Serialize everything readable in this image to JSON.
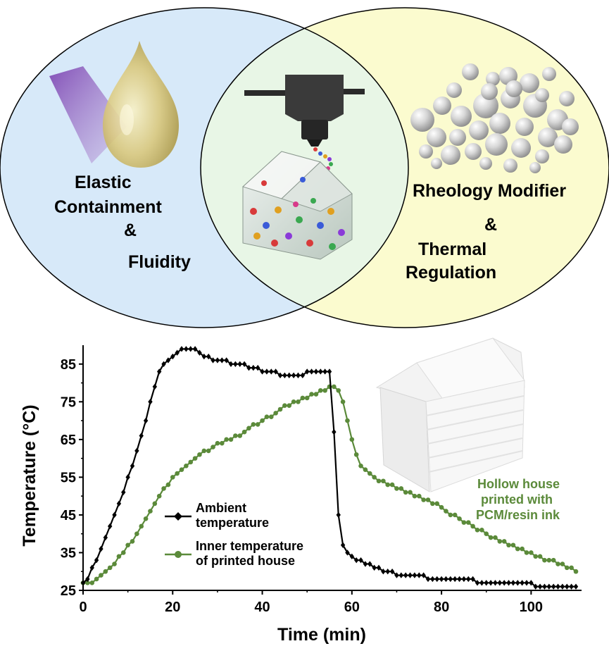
{
  "venn": {
    "left_label": [
      "Elastic",
      "Containment",
      "&",
      "Fluidity"
    ],
    "right_label": [
      "Rheology Modifier",
      "&",
      "Thermal",
      "Regulation"
    ],
    "colors": {
      "left_fill": "#d7e9f9",
      "right_fill": "#fbfbcf",
      "overlap_fill": "#e8f6e6",
      "outline": "#000000"
    }
  },
  "house_note": [
    "Hollow house",
    "printed with",
    "PCM/resin ink"
  ],
  "chart_data": {
    "type": "line",
    "xlabel": "Time (min)",
    "ylabel": "Temperature (°C)",
    "xlim": [
      0,
      110
    ],
    "ylim": [
      25,
      90
    ],
    "xticks": [
      0,
      20,
      40,
      60,
      80,
      100
    ],
    "yticks": [
      25,
      35,
      45,
      55,
      65,
      75,
      85
    ],
    "legend_position": "lower-left",
    "series": [
      {
        "name": "Ambient temperature",
        "legend_lines": [
          "Ambient",
          "temperature"
        ],
        "color": "#000000",
        "marker": "diamond",
        "x": [
          0,
          1,
          2,
          3,
          4,
          5,
          6,
          7,
          8,
          9,
          10,
          11,
          12,
          13,
          14,
          15,
          16,
          17,
          18,
          19,
          20,
          21,
          22,
          23,
          24,
          25,
          26,
          27,
          28,
          29,
          30,
          31,
          32,
          33,
          34,
          35,
          36,
          37,
          38,
          39,
          40,
          41,
          42,
          43,
          44,
          45,
          46,
          47,
          48,
          49,
          50,
          51,
          52,
          53,
          54,
          55,
          56,
          57,
          58,
          59,
          60,
          61,
          62,
          63,
          64,
          65,
          66,
          67,
          68,
          69,
          70,
          71,
          72,
          73,
          74,
          75,
          76,
          77,
          78,
          79,
          80,
          81,
          82,
          83,
          84,
          85,
          86,
          87,
          88,
          89,
          90,
          91,
          92,
          93,
          94,
          95,
          96,
          97,
          98,
          99,
          100,
          101,
          102,
          103,
          104,
          105,
          106,
          107,
          108,
          109,
          110
        ],
        "y": [
          27,
          28,
          31,
          33,
          36,
          39,
          42,
          45,
          48,
          51,
          55,
          58,
          62,
          66,
          70,
          75,
          79,
          83,
          85,
          86,
          87,
          88,
          89,
          89,
          89,
          89,
          88,
          87,
          87,
          86,
          86,
          86,
          86,
          85,
          85,
          85,
          85,
          84,
          84,
          84,
          83,
          83,
          83,
          83,
          82,
          82,
          82,
          82,
          82,
          82,
          83,
          83,
          83,
          83,
          83,
          83,
          67,
          45,
          37,
          35,
          34,
          33,
          33,
          32,
          32,
          31,
          31,
          30,
          30,
          30,
          29,
          29,
          29,
          29,
          29,
          29,
          29,
          28,
          28,
          28,
          28,
          28,
          28,
          28,
          28,
          28,
          28,
          28,
          27,
          27,
          27,
          27,
          27,
          27,
          27,
          27,
          27,
          27,
          27,
          27,
          27,
          26,
          26,
          26,
          26,
          26,
          26,
          26,
          26,
          26,
          26
        ]
      },
      {
        "name": "Inner temperature of printed house",
        "legend_lines": [
          "Inner temperature",
          "of printed house"
        ],
        "color": "#5b8a3a",
        "marker": "circle",
        "x": [
          0,
          1,
          2,
          3,
          4,
          5,
          6,
          7,
          8,
          9,
          10,
          11,
          12,
          13,
          14,
          15,
          16,
          17,
          18,
          19,
          20,
          21,
          22,
          23,
          24,
          25,
          26,
          27,
          28,
          29,
          30,
          31,
          32,
          33,
          34,
          35,
          36,
          37,
          38,
          39,
          40,
          41,
          42,
          43,
          44,
          45,
          46,
          47,
          48,
          49,
          50,
          51,
          52,
          53,
          54,
          55,
          56,
          57,
          58,
          59,
          60,
          61,
          62,
          63,
          64,
          65,
          66,
          67,
          68,
          69,
          70,
          71,
          72,
          73,
          74,
          75,
          76,
          77,
          78,
          79,
          80,
          81,
          82,
          83,
          84,
          85,
          86,
          87,
          88,
          89,
          90,
          91,
          92,
          93,
          94,
          95,
          96,
          97,
          98,
          99,
          100,
          101,
          102,
          103,
          104,
          105,
          106,
          107,
          108,
          109,
          110
        ],
        "y": [
          27,
          27,
          27,
          28,
          29,
          30,
          31,
          32,
          34,
          35,
          37,
          38,
          40,
          42,
          44,
          46,
          48,
          50,
          52,
          53,
          55,
          56,
          57,
          58,
          59,
          60,
          61,
          62,
          62,
          63,
          64,
          64,
          65,
          65,
          66,
          66,
          67,
          68,
          69,
          69,
          70,
          71,
          71,
          72,
          73,
          74,
          74,
          75,
          75,
          76,
          76,
          77,
          77,
          78,
          78,
          79,
          79,
          78,
          75,
          70,
          65,
          61,
          58,
          57,
          56,
          55,
          54,
          54,
          53,
          53,
          52,
          52,
          51,
          51,
          50,
          50,
          49,
          49,
          48,
          48,
          47,
          46,
          45,
          45,
          44,
          43,
          43,
          42,
          41,
          41,
          40,
          39,
          39,
          38,
          38,
          37,
          37,
          36,
          36,
          35,
          35,
          34,
          34,
          33,
          33,
          33,
          32,
          32,
          31,
          31,
          30
        ]
      }
    ]
  }
}
